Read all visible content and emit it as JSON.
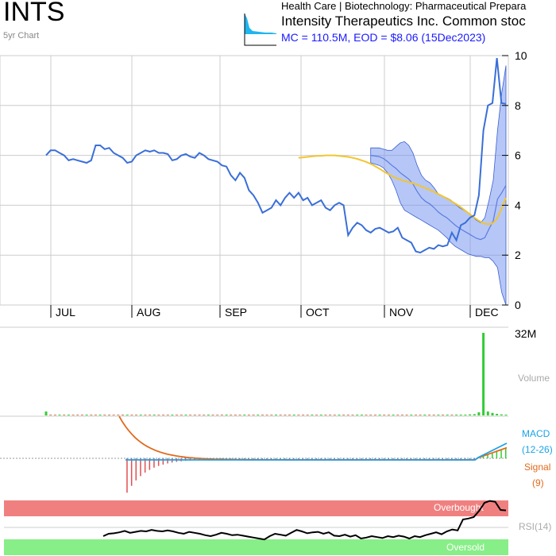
{
  "header": {
    "ticker": "INTS",
    "subtitle": "5yr Chart",
    "sector": "Health Care | Biotechnology: Pharmaceutical Prepara",
    "company": "Intensity Therapeutics Inc. Common stoc",
    "stats": "MC = 110.5M, EOD = $8.06 (15Dec2023)"
  },
  "colors": {
    "price": "#3a6fd8",
    "band": "#6e8ff0",
    "ma": "#f2c530",
    "volume": "#33cc33",
    "macd": "#1aa3e8",
    "signal": "#e06a1e",
    "hist_neg": "#e05050",
    "hist_pos": "#33cc33",
    "overbought": "#f08080",
    "oversold": "#88ee88",
    "grid": "#cccccc"
  },
  "labels": {
    "volume": "Volume",
    "macd": "MACD",
    "macd_params": "(12-26)",
    "signal": "Signal",
    "signal_params": "(9)",
    "rsi": "RSI(14)",
    "overbought": "Overbought",
    "oversold": "Oversold"
  },
  "chart_data": {
    "type": "line",
    "ylim": [
      0,
      10
    ],
    "yticks": [
      0,
      2,
      4,
      6,
      8,
      10
    ],
    "months": [
      "JUL",
      "AUG",
      "SEP",
      "OCT",
      "NOV",
      "DEC"
    ],
    "volume_max_label": "32M",
    "price": [
      6.0,
      6.2,
      6.2,
      6.1,
      6.0,
      5.8,
      5.85,
      5.8,
      5.75,
      5.7,
      5.8,
      6.4,
      6.4,
      6.25,
      6.3,
      6.1,
      6.0,
      5.9,
      5.7,
      5.75,
      6.0,
      6.1,
      6.2,
      6.15,
      6.2,
      6.1,
      6.1,
      6.05,
      5.8,
      5.85,
      6.0,
      6.05,
      5.95,
      5.9,
      6.1,
      6.0,
      5.85,
      5.8,
      5.75,
      5.6,
      5.55,
      5.2,
      5.0,
      5.3,
      5.1,
      4.6,
      4.4,
      4.1,
      3.7,
      3.8,
      3.9,
      4.2,
      4.0,
      4.3,
      4.5,
      4.3,
      4.5,
      4.2,
      4.3,
      4.0,
      4.1,
      4.2,
      3.9,
      3.8,
      4.0,
      4.1,
      4.0,
      2.8,
      3.1,
      3.3,
      3.2,
      3.0,
      2.9,
      3.05,
      3.1,
      3.0,
      2.9,
      2.95,
      3.1,
      2.7,
      2.6,
      2.5,
      2.15,
      2.1,
      2.2,
      2.3,
      2.25,
      2.4,
      2.35,
      2.4,
      2.9,
      2.6,
      3.2,
      3.3,
      3.5,
      3.6,
      4.4,
      7.0,
      8.0,
      8.1,
      9.9,
      8.1,
      8.06
    ],
    "ma": [
      5.9,
      5.92,
      5.94,
      5.96,
      5.98,
      5.98,
      6.0,
      6.0,
      6.0,
      5.98,
      5.96,
      5.94,
      5.9,
      5.86,
      5.8,
      5.74,
      5.66,
      5.56,
      5.46,
      5.34,
      5.24,
      5.14,
      5.06,
      5.0,
      4.95,
      4.9,
      4.84,
      4.77,
      4.7,
      4.62,
      4.54,
      4.45,
      4.36,
      4.26,
      4.15,
      4.04,
      3.92,
      3.78,
      3.64,
      3.5,
      3.38,
      3.28,
      3.24,
      3.27,
      3.45,
      3.85,
      4.3
    ],
    "ma_start": 56,
    "band_upper": [
      6.3,
      6.3,
      6.3,
      6.25,
      6.2,
      6.2,
      6.35,
      6.5,
      6.55,
      6.4,
      6.1,
      5.6,
      5.2,
      5.0,
      4.9,
      4.7,
      4.45,
      4.35,
      4.3,
      4.2,
      4.05,
      3.9,
      3.8,
      3.7,
      3.55,
      3.4,
      3.3,
      3.5,
      4.2,
      5.0,
      7.0,
      8.5,
      9.6
    ],
    "band_lower": [
      5.7,
      5.65,
      5.6,
      5.5,
      5.3,
      5.0,
      4.6,
      4.1,
      3.8,
      3.7,
      3.6,
      3.5,
      3.4,
      3.3,
      3.2,
      3.1,
      3.0,
      2.85,
      2.7,
      2.5,
      2.35,
      2.25,
      2.15,
      2.05,
      2.0,
      1.95,
      1.95,
      1.9,
      1.9,
      1.75,
      1.5,
      0.5,
      0.0
    ],
    "band_start": 72,
    "volume": [
      1.5,
      0.2,
      0.2,
      0.3,
      0.2,
      0.3,
      0.2,
      0.2,
      0.2,
      0.3,
      0.2,
      0.2,
      0.3,
      0.2,
      0.2,
      0.2,
      0.2,
      0.2,
      0.3,
      0.2,
      0.2,
      0.3,
      0.2,
      0.2,
      0.3,
      0.2,
      0.2,
      0.2,
      0.3,
      0.2,
      0.2,
      0.3,
      0.2,
      0.2,
      0.2,
      0.2,
      0.3,
      0.2,
      0.2,
      0.2,
      0.3,
      0.2,
      0.2,
      0.2,
      0.3,
      0.2,
      0.2,
      0.3,
      0.2,
      0.2,
      0.2,
      0.3,
      0.2,
      0.2,
      0.2,
      0.3,
      0.2,
      0.2,
      0.2,
      0.3,
      0.2,
      0.3,
      0.2,
      0.2,
      0.2,
      0.3,
      0.2,
      0.2,
      0.2,
      0.3,
      0.3,
      0.2,
      0.2,
      0.2,
      0.3,
      0.2,
      0.2,
      0.3,
      0.2,
      0.2,
      0.2,
      0.3,
      0.2,
      0.2,
      0.3,
      0.2,
      0.2,
      0.3,
      0.2,
      0.3,
      0.2,
      0.3,
      0.3,
      0.3,
      0.4,
      0.5,
      1.2,
      32.0,
      1.5,
      1.0,
      0.6,
      0.4,
      0.3
    ],
    "volume_max": 32,
    "rsi": [
      25,
      30,
      31,
      33,
      36,
      32,
      34,
      36,
      35,
      38,
      36,
      35,
      37,
      35,
      32,
      30,
      34,
      32,
      30,
      27,
      25,
      28,
      32,
      30,
      27,
      28,
      26,
      24,
      22,
      20,
      18,
      25,
      30,
      28,
      26,
      32,
      38,
      35,
      31,
      33,
      34,
      30,
      33,
      26,
      25,
      28,
      24,
      27,
      20,
      22,
      25,
      23,
      21,
      25,
      23,
      26,
      24,
      20,
      25,
      23,
      27,
      30,
      33,
      29,
      35,
      39,
      37,
      60,
      62,
      65,
      78,
      95,
      99,
      97,
      80,
      79
    ]
  }
}
